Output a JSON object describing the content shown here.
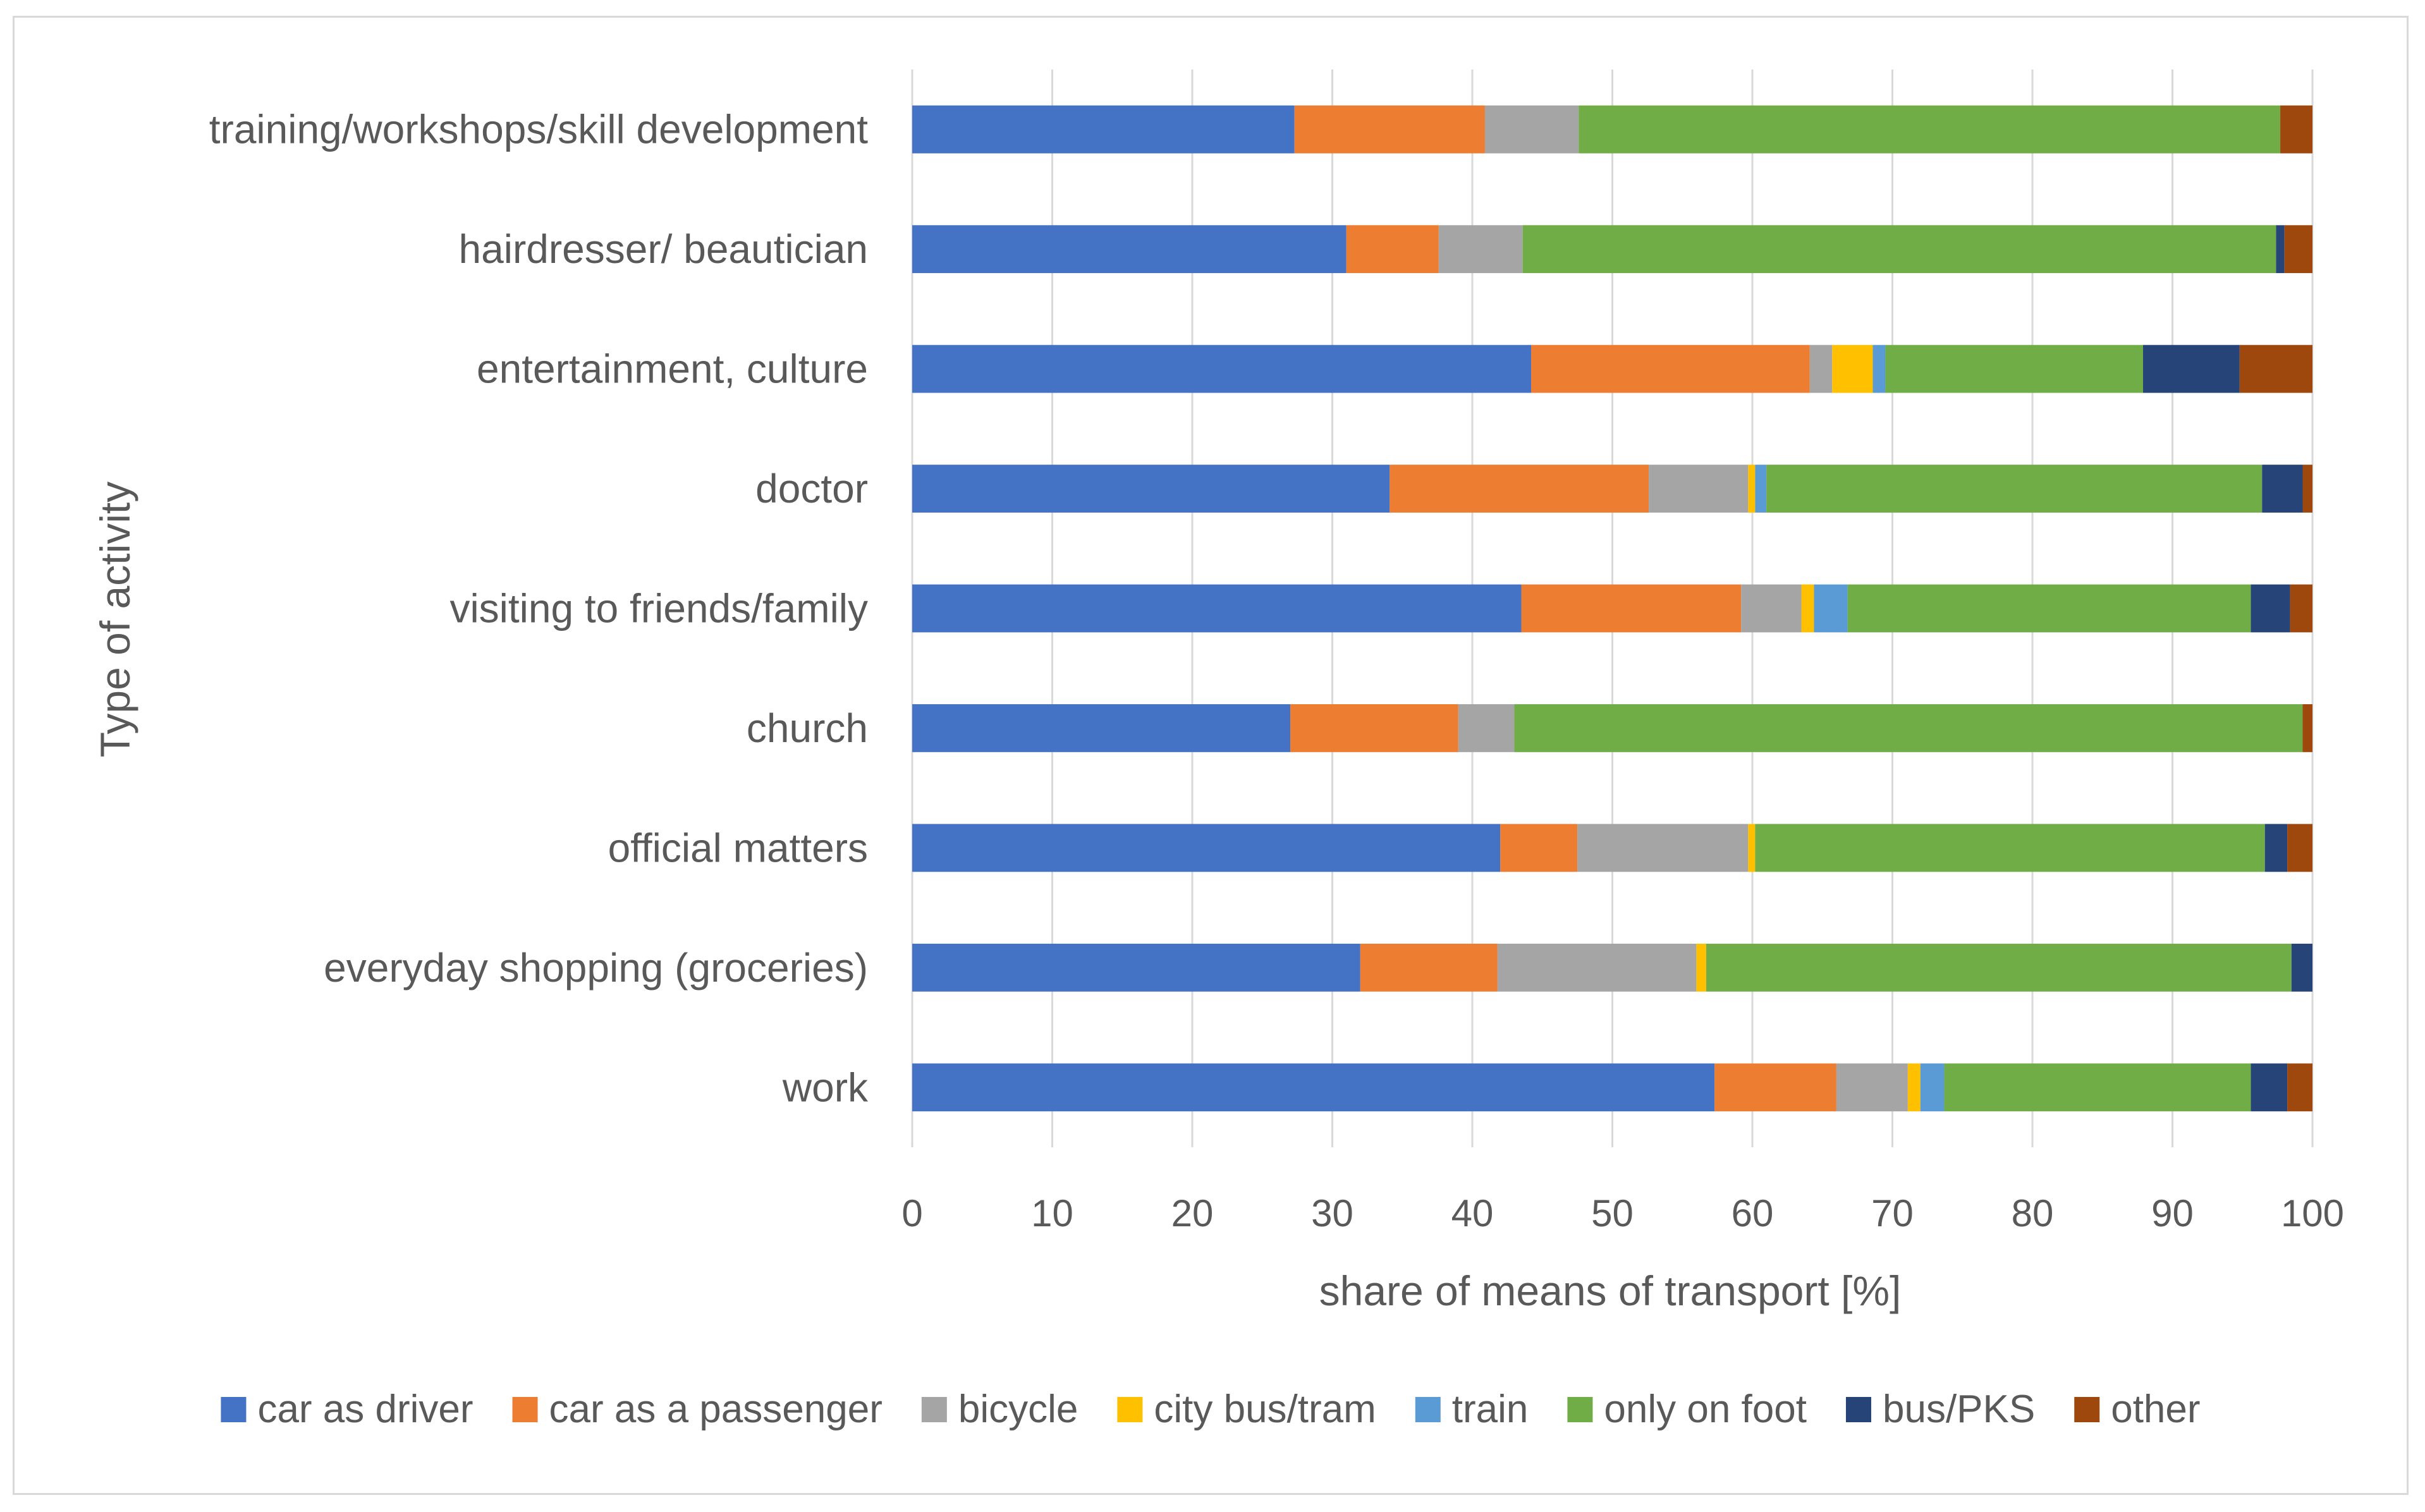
{
  "chart_data": {
    "type": "bar",
    "orientation": "horizontal",
    "stacked": true,
    "xlabel": "share of means of transport [%]",
    "ylabel": "Type of activity",
    "xlim": [
      0,
      100
    ],
    "xticks": [
      0,
      10,
      20,
      30,
      40,
      50,
      60,
      70,
      80,
      90,
      100
    ],
    "grid": "vertical",
    "legend_position": "bottom",
    "categories": [
      "training/workshops/skill development",
      "hairdresser/ beautician",
      "entertainment, culture",
      "doctor",
      "visiting to friends/family",
      "church",
      "official matters",
      "everyday shopping (groceries)",
      "work"
    ],
    "series": [
      {
        "name": "car as driver",
        "color": "#4472c4",
        "values": [
          27.3,
          31.0,
          44.2,
          34.1,
          43.5,
          27.0,
          42.0,
          32.0,
          57.3
        ]
      },
      {
        "name": "car as a passenger",
        "color": "#ed7d31",
        "values": [
          13.6,
          6.6,
          19.9,
          18.5,
          15.7,
          12.0,
          5.5,
          9.8,
          8.7
        ]
      },
      {
        "name": "bicycle",
        "color": "#a5a5a5",
        "values": [
          6.7,
          6.0,
          1.6,
          7.1,
          4.3,
          4.0,
          12.2,
          14.2,
          5.1
        ]
      },
      {
        "name": "city bus/tram",
        "color": "#ffc000",
        "values": [
          0,
          0,
          2.9,
          0.5,
          0.9,
          0,
          0.5,
          0.7,
          0.9
        ]
      },
      {
        "name": "train",
        "color": "#5b9bd5",
        "values": [
          0,
          0,
          0.9,
          0.8,
          2.4,
          0,
          0,
          0,
          1.7
        ]
      },
      {
        "name": "only on foot",
        "color": "#70ad47",
        "values": [
          50.1,
          53.8,
          18.4,
          35.4,
          28.8,
          56.3,
          36.4,
          41.8,
          21.9
        ]
      },
      {
        "name": "bus/PKS",
        "color": "#264478",
        "values": [
          0,
          0.6,
          6.9,
          2.9,
          2.8,
          0,
          1.6,
          1.5,
          2.6
        ]
      },
      {
        "name": "other",
        "color": "#9e480e",
        "values": [
          2.3,
          2.0,
          5.2,
          0.7,
          1.6,
          0.7,
          1.8,
          0,
          1.8
        ]
      }
    ]
  }
}
